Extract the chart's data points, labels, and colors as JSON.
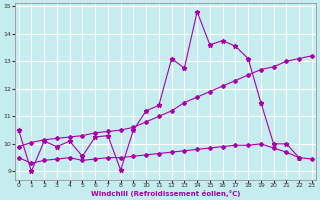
{
  "xlabel": "Windchill (Refroidissement éolien,°C)",
  "xlim": [
    -0.3,
    23.3
  ],
  "ylim": [
    8.7,
    15.1
  ],
  "yticks": [
    9,
    10,
    11,
    12,
    13,
    14,
    15
  ],
  "xticks": [
    0,
    1,
    2,
    3,
    4,
    5,
    6,
    7,
    8,
    9,
    10,
    11,
    12,
    13,
    14,
    15,
    16,
    17,
    18,
    19,
    20,
    21,
    22,
    23
  ],
  "background_color": "#c5ecee",
  "grid_color": "#ffffff",
  "line_color": "#aa00aa",
  "line1_x": [
    0,
    1,
    2,
    3,
    4,
    5,
    6,
    7,
    8,
    9,
    10,
    11,
    12,
    13,
    14,
    15,
    16,
    17,
    18,
    19,
    20,
    21,
    22
  ],
  "line1_y": [
    10.5,
    9.0,
    10.1,
    9.9,
    10.1,
    9.55,
    10.25,
    10.3,
    9.05,
    10.5,
    11.2,
    11.4,
    13.1,
    12.75,
    14.8,
    13.6,
    13.75,
    13.55,
    13.1,
    11.5,
    10.0,
    10.0,
    9.5
  ],
  "line2_x": [
    0,
    1,
    2,
    3,
    4,
    5,
    6,
    7,
    8,
    9,
    10,
    11,
    12,
    13,
    14,
    15,
    16,
    17,
    18,
    19,
    20,
    21,
    22,
    23
  ],
  "line2_y": [
    9.9,
    10.05,
    10.15,
    10.2,
    10.25,
    10.3,
    10.4,
    10.45,
    10.5,
    10.6,
    10.8,
    11.0,
    11.2,
    11.5,
    11.7,
    11.9,
    12.1,
    12.3,
    12.5,
    12.7,
    12.8,
    13.0,
    13.1,
    13.2
  ],
  "line3_x": [
    0,
    1,
    2,
    3,
    4,
    5,
    6,
    7,
    8,
    9,
    10,
    11,
    12,
    13,
    14,
    15,
    16,
    17,
    18,
    19,
    20,
    21,
    22,
    23
  ],
  "line3_y": [
    9.5,
    9.3,
    9.4,
    9.45,
    9.5,
    9.4,
    9.45,
    9.5,
    9.5,
    9.55,
    9.6,
    9.65,
    9.7,
    9.75,
    9.8,
    9.85,
    9.9,
    9.95,
    9.95,
    10.0,
    9.85,
    9.7,
    9.5,
    9.45
  ]
}
